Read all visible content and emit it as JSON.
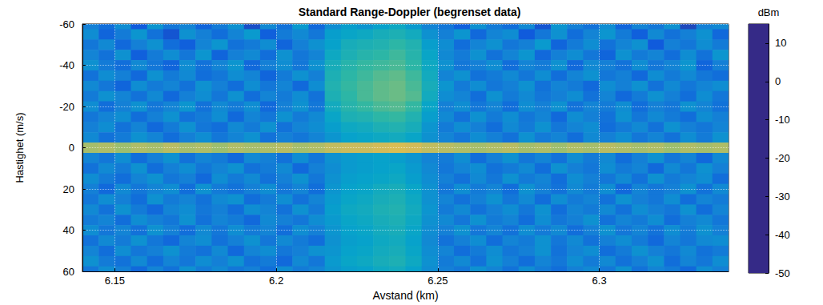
{
  "chart_data": {
    "type": "heatmap",
    "title": "Standard Range-Doppler (begrenset data)",
    "x_label": "Avstand (km)",
    "y_label": "Hastighet (m/s)",
    "xlim": [
      6.14,
      6.34
    ],
    "xticks": [
      6.15,
      6.2,
      6.25,
      6.3
    ],
    "ylim": [
      -60,
      60
    ],
    "yticks": [
      -60,
      -40,
      -20,
      0,
      20,
      40,
      60
    ],
    "grid": true,
    "x": [
      6.1425,
      6.1475,
      6.1525,
      6.1575,
      6.1625,
      6.1675,
      6.1725,
      6.1775,
      6.1825,
      6.1875,
      6.1925,
      6.1975,
      6.2025,
      6.2075,
      6.2125,
      6.2175,
      6.2225,
      6.2275,
      6.2325,
      6.2375,
      6.2425,
      6.2475,
      6.2525,
      6.2575,
      6.2625,
      6.2675,
      6.2725,
      6.2775,
      6.2825,
      6.2875,
      6.2925,
      6.2975,
      6.3025,
      6.3075,
      6.3125,
      6.3175,
      6.3225,
      6.3275,
      6.3325,
      6.3375
    ],
    "y": [
      -60,
      -55,
      -50,
      -45,
      -40,
      -35,
      -30,
      -25,
      -20,
      -15,
      -10,
      -5,
      0,
      5,
      10,
      15,
      20,
      25,
      30,
      35,
      40,
      45,
      50,
      55,
      60
    ],
    "z": [
      [
        -34,
        -38,
        -31,
        -42,
        -29,
        -36,
        -33,
        -40,
        -35,
        -30,
        -44,
        -32,
        -37,
        -28,
        -39,
        -31,
        -27,
        -29,
        -26,
        -24,
        -28,
        -33,
        -36,
        -41,
        -30,
        -35,
        -38,
        -32,
        -43,
        -29,
        -34,
        -37,
        -31,
        -40,
        -33,
        -36,
        -30,
        -45,
        -34,
        -32
      ],
      [
        -31,
        -40,
        -35,
        -29,
        -37,
        -43,
        -30,
        -34,
        -38,
        -33,
        -28,
        -41,
        -35,
        -32,
        -36,
        -27,
        -25,
        -24,
        -22,
        -21,
        -23,
        -30,
        -34,
        -29,
        -39,
        -33,
        -31,
        -42,
        -36,
        -30,
        -38,
        -33,
        -29,
        -35,
        -41,
        -32,
        -37,
        -34,
        -30,
        -39
      ],
      [
        -36,
        -32,
        -39,
        -34,
        -30,
        -38,
        -41,
        -33,
        -29,
        -37,
        -35,
        -31,
        -40,
        -34,
        -30,
        -26,
        -22,
        -21,
        -20,
        -18,
        -20,
        -27,
        -31,
        -38,
        -33,
        -30,
        -36,
        -34,
        -28,
        -40,
        -35,
        -31,
        -37,
        -33,
        -30,
        -42,
        -34,
        -36,
        -31,
        -35
      ],
      [
        -33,
        -37,
        -30,
        -41,
        -35,
        -31,
        -36,
        -29,
        -40,
        -34,
        -32,
        -38,
        -30,
        -36,
        -33,
        -24,
        -21,
        -19,
        -18,
        -16,
        -19,
        -25,
        -32,
        -35,
        -30,
        -37,
        -33,
        -29,
        -39,
        -34,
        -31,
        -36,
        -40,
        -30,
        -35,
        -33,
        -38,
        -31,
        -37,
        -29
      ],
      [
        -30,
        -35,
        -38,
        -32,
        -36,
        -40,
        -31,
        -37,
        -33,
        -29,
        -39,
        -34,
        -31,
        -36,
        -30,
        -22,
        -19,
        -17,
        -16,
        -15,
        -18,
        -24,
        -30,
        -36,
        -34,
        -31,
        -38,
        -33,
        -35,
        -30,
        -39,
        -32,
        -34,
        -37,
        -31,
        -36,
        -33,
        -29,
        -40,
        -34
      ],
      [
        -37,
        -31,
        -34,
        -39,
        -30,
        -35,
        -32,
        -38,
        -36,
        -31,
        -33,
        -40,
        -35,
        -30,
        -34,
        -21,
        -18,
        -16,
        -14,
        -13,
        -16,
        -23,
        -33,
        -30,
        -37,
        -35,
        -32,
        -36,
        -31,
        -38,
        -33,
        -30,
        -36,
        -34,
        -39,
        -31,
        -35,
        -32,
        -36,
        -38
      ],
      [
        -32,
        -36,
        -40,
        -31,
        -35,
        -33,
        -37,
        -30,
        -34,
        -38,
        -31,
        -36,
        -33,
        -39,
        -31,
        -20,
        -17,
        -15,
        -13,
        -12,
        -15,
        -22,
        -29,
        -35,
        -31,
        -36,
        -34,
        -30,
        -37,
        -33,
        -35,
        -39,
        -31,
        -34,
        -30,
        -37,
        -32,
        -36,
        -33,
        -31
      ],
      [
        -35,
        -30,
        -33,
        -37,
        -32,
        -39,
        -34,
        -31,
        -36,
        -30,
        -38,
        -33,
        -35,
        -31,
        -37,
        -21,
        -18,
        -15,
        -13,
        -12,
        -14,
        -23,
        -31,
        -33,
        -38,
        -30,
        -35,
        -32,
        -36,
        -34,
        -31,
        -37,
        -33,
        -39,
        -35,
        -30,
        -34,
        -38,
        -31,
        -36
      ],
      [
        -31,
        -38,
        -34,
        -30,
        -36,
        -33,
        -29,
        -37,
        -32,
        -35,
        -31,
        -39,
        -34,
        -30,
        -36,
        -23,
        -19,
        -17,
        -15,
        -14,
        -17,
        -25,
        -34,
        -31,
        -36,
        -33,
        -38,
        -31,
        -34,
        -30,
        -37,
        -33,
        -35,
        -31,
        -38,
        -34,
        -36,
        -30,
        -33,
        -37
      ],
      [
        -36,
        -33,
        -31,
        -38,
        -34,
        -30,
        -37,
        -35,
        -31,
        -39,
        -33,
        -36,
        -30,
        -35,
        -32,
        -25,
        -21,
        -20,
        -18,
        -17,
        -20,
        -27,
        -32,
        -37,
        -30,
        -35,
        -31,
        -36,
        -33,
        -39,
        -31,
        -34,
        -37,
        -30,
        -36,
        -32,
        -35,
        -38,
        -31,
        -34
      ],
      [
        -34,
        -31,
        -37,
        -33,
        -39,
        -35,
        -30,
        -36,
        -38,
        -32,
        -35,
        -30,
        -37,
        -33,
        -31,
        -27,
        -24,
        -23,
        -21,
        -20,
        -22,
        -29,
        -35,
        -31,
        -34,
        -38,
        -32,
        -35,
        -30,
        -36,
        -33,
        -31,
        -38,
        -35,
        -32,
        -37,
        -30,
        -34,
        -36,
        -33
      ],
      [
        -32,
        -37,
        -35,
        -30,
        -33,
        -38,
        -34,
        -31,
        -36,
        -33,
        -30,
        -37,
        -34,
        -36,
        -33,
        -29,
        -26,
        -25,
        -24,
        -23,
        -25,
        -30,
        -33,
        -36,
        -31,
        -34,
        -37,
        -30,
        -35,
        -33,
        -38,
        -32,
        -34,
        -31,
        -36,
        -33,
        -37,
        -31,
        -35,
        -30
      ],
      [
        -6,
        -5,
        -7,
        -5,
        -6,
        -4,
        -6,
        -5,
        -7,
        -5,
        -6,
        -5,
        -4,
        -6,
        -5,
        -3,
        -2,
        -2,
        -1,
        0,
        -1,
        -3,
        -4,
        -5,
        -6,
        -5,
        -4,
        -6,
        -5,
        -7,
        -5,
        -6,
        -4,
        -5,
        -6,
        -5,
        -7,
        -5,
        -6,
        -5
      ],
      [
        -33,
        -36,
        -31,
        -38,
        -34,
        -30,
        -37,
        -33,
        -35,
        -39,
        -32,
        -34,
        -37,
        -31,
        -36,
        -30,
        -28,
        -27,
        -26,
        -27,
        -29,
        -33,
        -35,
        -31,
        -38,
        -34,
        -30,
        -36,
        -33,
        -37,
        -31,
        -35,
        -32,
        -38,
        -34,
        -30,
        -36,
        -33,
        -39,
        -32
      ],
      [
        -37,
        -32,
        -35,
        -30,
        -38,
        -34,
        -31,
        -36,
        -33,
        -30,
        -37,
        -35,
        -32,
        -39,
        -34,
        -31,
        -28,
        -27,
        -26,
        -25,
        -28,
        -32,
        -36,
        -33,
        -31,
        -37,
        -35,
        -32,
        -38,
        -30,
        -34,
        -36,
        -31,
        -35,
        -33,
        -39,
        -32,
        -36,
        -30,
        -34
      ],
      [
        -31,
        -35,
        -38,
        -33,
        -30,
        -36,
        -34,
        -39,
        -31,
        -35,
        -32,
        -37,
        -34,
        -30,
        -36,
        -30,
        -27,
        -26,
        -25,
        -24,
        -27,
        -31,
        -34,
        -37,
        -32,
        -36,
        -30,
        -35,
        -33,
        -38,
        -31,
        -34,
        -36,
        -32,
        -37,
        -30,
        -35,
        -33,
        -31,
        -38
      ],
      [
        -34,
        -39,
        -32,
        -36,
        -33,
        -31,
        -38,
        -30,
        -35,
        -37,
        -34,
        -31,
        -36,
        -33,
        -38,
        -29,
        -26,
        -25,
        -23,
        -22,
        -25,
        -30,
        -36,
        -31,
        -35,
        -33,
        -38,
        -30,
        -34,
        -37,
        -32,
        -35,
        -31,
        -39,
        -33,
        -36,
        -34,
        -30,
        -37,
        -32
      ],
      [
        -36,
        -31,
        -34,
        -38,
        -30,
        -35,
        -33,
        -37,
        -32,
        -30,
        -38,
        -35,
        -31,
        -37,
        -33,
        -28,
        -25,
        -24,
        -22,
        -21,
        -24,
        -30,
        -33,
        -37,
        -34,
        -30,
        -36,
        -32,
        -38,
        -31,
        -35,
        -33,
        -37,
        -30,
        -34,
        -36,
        -31,
        -38,
        -33,
        -35
      ],
      [
        -32,
        -37,
        -30,
        -35,
        -39,
        -33,
        -31,
        -36,
        -34,
        -38,
        -31,
        -33,
        -37,
        -30,
        -35,
        -27,
        -24,
        -23,
        -21,
        -20,
        -23,
        -29,
        -35,
        -32,
        -37,
        -34,
        -31,
        -36,
        -30,
        -38,
        -33,
        -35,
        -32,
        -37,
        -31,
        -34,
        -36,
        -30,
        -38,
        -33
      ],
      [
        -35,
        -33,
        -38,
        -31,
        -34,
        -36,
        -30,
        -37,
        -33,
        -35,
        -39,
        -32,
        -34,
        -36,
        -31,
        -28,
        -25,
        -24,
        -22,
        -21,
        -24,
        -30,
        -32,
        -36,
        -30,
        -35,
        -33,
        -38,
        -31,
        -36,
        -34,
        -30,
        -37,
        -33,
        -35,
        -31,
        -38,
        -34,
        -32,
        -36
      ],
      [
        -31,
        -36,
        -33,
        -37,
        -30,
        -34,
        -38,
        -32,
        -36,
        -31,
        -35,
        -33,
        -38,
        -31,
        -34,
        -29,
        -26,
        -25,
        -23,
        -22,
        -25,
        -31,
        -34,
        -30,
        -36,
        -33,
        -37,
        -31,
        -35,
        -32,
        -38,
        -34,
        -30,
        -36,
        -33,
        -37,
        -31,
        -35,
        -30,
        -34
      ],
      [
        -37,
        -32,
        -35,
        -30,
        -36,
        -39,
        -33,
        -31,
        -37,
        -34,
        -30,
        -36,
        -32,
        -35,
        -38,
        -30,
        -27,
        -26,
        -24,
        -23,
        -26,
        -32,
        -37,
        -34,
        -31,
        -38,
        -33,
        -35,
        -30,
        -36,
        -32,
        -37,
        -34,
        -31,
        -35,
        -39,
        -33,
        -36,
        -32,
        -31
      ],
      [
        -33,
        -38,
        -31,
        -36,
        -34,
        -30,
        -35,
        -37,
        -32,
        -39,
        -33,
        -31,
        -36,
        -34,
        -30,
        -29,
        -26,
        -25,
        -23,
        -22,
        -25,
        -31,
        -33,
        -38,
        -35,
        -31,
        -36,
        -34,
        -30,
        -37,
        -33,
        -31,
        -38,
        -35,
        -30,
        -34,
        -36,
        -32,
        -37,
        -35
      ],
      [
        -30,
        -35,
        -37,
        -32,
        -38,
        -33,
        -36,
        -31,
        -34,
        -30,
        -37,
        -35,
        -39,
        -32,
        -36,
        -28,
        -25,
        -24,
        -22,
        -21,
        -24,
        -30,
        -35,
        -32,
        -37,
        -30,
        -34,
        -38,
        -33,
        -36,
        -31,
        -35,
        -32,
        -37,
        -34,
        -30,
        -38,
        -33,
        -36,
        -31
      ],
      [
        -36,
        -31,
        -34,
        -39,
        -33,
        -37,
        -30,
        -35,
        -32,
        -36,
        -34,
        -38,
        -31,
        -35,
        -33,
        -29,
        -27,
        -26,
        -24,
        -23,
        -26,
        -31,
        -34,
        -36,
        -30,
        -33,
        -37,
        -31,
        -35,
        -38,
        -34,
        -32,
        -36,
        -30,
        -37,
        -33,
        -35,
        -39,
        -31,
        -34
      ]
    ],
    "colorbar": {
      "label": "dBm",
      "lim": [
        -50,
        15
      ],
      "ticks": [
        -50,
        -40,
        -30,
        -20,
        -10,
        0,
        10
      ]
    }
  }
}
